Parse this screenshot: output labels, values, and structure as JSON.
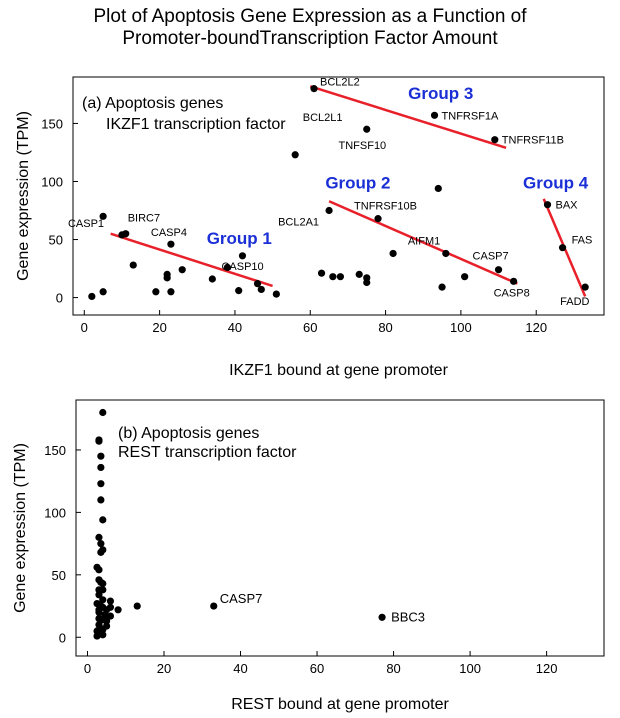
{
  "title_lines": [
    "Plot of Apoptosis Gene Expression as a Function of",
    "Promoter-boundTranscription Factor Amount"
  ],
  "chart_data": [
    {
      "type": "scatter",
      "panel_label": "(a) Apoptosis genes",
      "panel_sublabel": "IKZF1 transcription factor",
      "xlabel": "IKZF1 bound at gene promoter",
      "ylabel": "Gene expression (TPM)",
      "xlim": [
        -3,
        138
      ],
      "ylim": [
        -15,
        190
      ],
      "xticks": [
        0,
        20,
        40,
        60,
        80,
        100,
        120
      ],
      "yticks": [
        0,
        50,
        100,
        150
      ],
      "grid": false,
      "points": [
        {
          "x": 2,
          "y": 1,
          "label": ""
        },
        {
          "x": 5,
          "y": 5,
          "label": ""
        },
        {
          "x": 5,
          "y": 70,
          "label": ""
        },
        {
          "x": 10,
          "y": 54,
          "label": "CASP1"
        },
        {
          "x": 11,
          "y": 55,
          "label": "BIRC7"
        },
        {
          "x": 13,
          "y": 28,
          "label": ""
        },
        {
          "x": 19,
          "y": 5,
          "label": ""
        },
        {
          "x": 22,
          "y": 17,
          "label": ""
        },
        {
          "x": 22,
          "y": 20,
          "label": ""
        },
        {
          "x": 23,
          "y": 5,
          "label": ""
        },
        {
          "x": 23,
          "y": 46,
          "label": "CASP4"
        },
        {
          "x": 26,
          "y": 24,
          "label": ""
        },
        {
          "x": 34,
          "y": 16,
          "label": ""
        },
        {
          "x": 38,
          "y": 26,
          "label": ""
        },
        {
          "x": 41,
          "y": 6,
          "label": ""
        },
        {
          "x": 42,
          "y": 36,
          "label": "CASP10"
        },
        {
          "x": 46,
          "y": 12,
          "label": ""
        },
        {
          "x": 47,
          "y": 7,
          "label": ""
        },
        {
          "x": 51,
          "y": 3,
          "label": ""
        },
        {
          "x": 56,
          "y": 123,
          "label": ""
        },
        {
          "x": 61,
          "y": 180,
          "label": "BCL2L2"
        },
        {
          "x": 63,
          "y": 21,
          "label": ""
        },
        {
          "x": 65,
          "y": 75,
          "label": "BCL2A1"
        },
        {
          "x": 66,
          "y": 18,
          "label": ""
        },
        {
          "x": 68,
          "y": 18,
          "label": ""
        },
        {
          "x": 73,
          "y": 20,
          "label": ""
        },
        {
          "x": 75,
          "y": 145,
          "label": "BCL2L1"
        },
        {
          "x": 75,
          "y": 17,
          "label": ""
        },
        {
          "x": 75,
          "y": 13,
          "label": ""
        },
        {
          "x": 78,
          "y": 68,
          "label": "TNFRSF10B"
        },
        {
          "x": 82,
          "y": 38,
          "label": ""
        },
        {
          "x": 93,
          "y": 157,
          "label": "TNFRSF1A"
        },
        {
          "x": 94,
          "y": 94,
          "label": ""
        },
        {
          "x": 95,
          "y": 9,
          "label": ""
        },
        {
          "x": 96,
          "y": 38,
          "label": "AIFM1"
        },
        {
          "x": 101,
          "y": 18,
          "label": ""
        },
        {
          "x": 109,
          "y": 136,
          "label": "TNFRSF11B"
        },
        {
          "x": 110,
          "y": 24,
          "label": "CASP7"
        },
        {
          "x": 114,
          "y": 14,
          "label": "CASP8"
        },
        {
          "x": 123,
          "y": 80,
          "label": "BAX"
        },
        {
          "x": 127,
          "y": 43,
          "label": "FAS"
        },
        {
          "x": 133,
          "y": 9,
          "label": "FADD"
        }
      ],
      "free_labels": [
        {
          "text": "TNFSF10",
          "x": 67.5,
          "y": 128
        }
      ],
      "trend_lines": [
        {
          "name": "Group 1",
          "x": [
            7,
            50
          ],
          "y": [
            55,
            10
          ]
        },
        {
          "name": "Group 2",
          "x": [
            65,
            115
          ],
          "y": [
            83,
            12
          ]
        },
        {
          "name": "Group 3",
          "x": [
            60,
            112
          ],
          "y": [
            182,
            129
          ]
        },
        {
          "name": "Group 4",
          "x": [
            122,
            133
          ],
          "y": [
            85,
            1
          ]
        }
      ],
      "group_labels": [
        {
          "text": "Group 1",
          "x": 32.5,
          "y": 46
        },
        {
          "text": "Group 2",
          "x": 64,
          "y": 94
        },
        {
          "text": "Group 3",
          "x": 86,
          "y": 171
        },
        {
          "text": "Group 4",
          "x": 116.5,
          "y": 94
        }
      ],
      "trend_color": "#e8202a",
      "group_label_color": "#1a2fd6",
      "point_color": "#000000"
    },
    {
      "type": "scatter",
      "panel_label": "(b) Apoptosis genes",
      "panel_sublabel": "REST transcription factor",
      "xlabel": "REST bound at gene promoter",
      "ylabel": "Gene expression (TPM)",
      "xlim": [
        -3,
        135
      ],
      "ylim": [
        -15,
        190
      ],
      "xticks": [
        0,
        20,
        40,
        60,
        80,
        100,
        120
      ],
      "yticks": [
        0,
        50,
        100,
        150
      ],
      "grid": false,
      "points": [
        {
          "x": 4,
          "y": 180,
          "label": ""
        },
        {
          "x": 3,
          "y": 158,
          "label": ""
        },
        {
          "x": 3,
          "y": 157,
          "label": ""
        },
        {
          "x": 3.5,
          "y": 145,
          "label": ""
        },
        {
          "x": 3.5,
          "y": 136,
          "label": ""
        },
        {
          "x": 3.5,
          "y": 123,
          "label": ""
        },
        {
          "x": 3.5,
          "y": 110,
          "label": ""
        },
        {
          "x": 4,
          "y": 94,
          "label": ""
        },
        {
          "x": 3,
          "y": 80,
          "label": ""
        },
        {
          "x": 3.5,
          "y": 75,
          "label": ""
        },
        {
          "x": 4,
          "y": 70,
          "label": ""
        },
        {
          "x": 3.5,
          "y": 68,
          "label": ""
        },
        {
          "x": 2.5,
          "y": 56,
          "label": ""
        },
        {
          "x": 3,
          "y": 54,
          "label": ""
        },
        {
          "x": 3,
          "y": 46,
          "label": ""
        },
        {
          "x": 3.5,
          "y": 44,
          "label": ""
        },
        {
          "x": 4,
          "y": 43,
          "label": ""
        },
        {
          "x": 3,
          "y": 38,
          "label": ""
        },
        {
          "x": 4,
          "y": 38,
          "label": ""
        },
        {
          "x": 3,
          "y": 34,
          "label": ""
        },
        {
          "x": 4,
          "y": 30,
          "label": ""
        },
        {
          "x": 6,
          "y": 29,
          "label": ""
        },
        {
          "x": 2.5,
          "y": 27,
          "label": ""
        },
        {
          "x": 3.5,
          "y": 25,
          "label": ""
        },
        {
          "x": 13,
          "y": 25,
          "label": ""
        },
        {
          "x": 6,
          "y": 24,
          "label": ""
        },
        {
          "x": 4,
          "y": 24,
          "label": ""
        },
        {
          "x": 3,
          "y": 22,
          "label": ""
        },
        {
          "x": 5,
          "y": 22,
          "label": ""
        },
        {
          "x": 8,
          "y": 22,
          "label": ""
        },
        {
          "x": 3,
          "y": 20,
          "label": ""
        },
        {
          "x": 4.5,
          "y": 18,
          "label": ""
        },
        {
          "x": 6,
          "y": 17,
          "label": ""
        },
        {
          "x": 3,
          "y": 15,
          "label": ""
        },
        {
          "x": 4,
          "y": 14,
          "label": ""
        },
        {
          "x": 5,
          "y": 13,
          "label": ""
        },
        {
          "x": 3,
          "y": 10,
          "label": ""
        },
        {
          "x": 5,
          "y": 9,
          "label": ""
        },
        {
          "x": 3.5,
          "y": 7,
          "label": ""
        },
        {
          "x": 4,
          "y": 6,
          "label": ""
        },
        {
          "x": 2.5,
          "y": 5,
          "label": ""
        },
        {
          "x": 3,
          "y": 3,
          "label": ""
        },
        {
          "x": 4,
          "y": 2,
          "label": ""
        },
        {
          "x": 2.5,
          "y": 1,
          "label": ""
        },
        {
          "x": 33,
          "y": 25,
          "label": "CASP7"
        },
        {
          "x": 77,
          "y": 16,
          "label": "BBC3"
        }
      ],
      "point_color": "#000000"
    }
  ]
}
